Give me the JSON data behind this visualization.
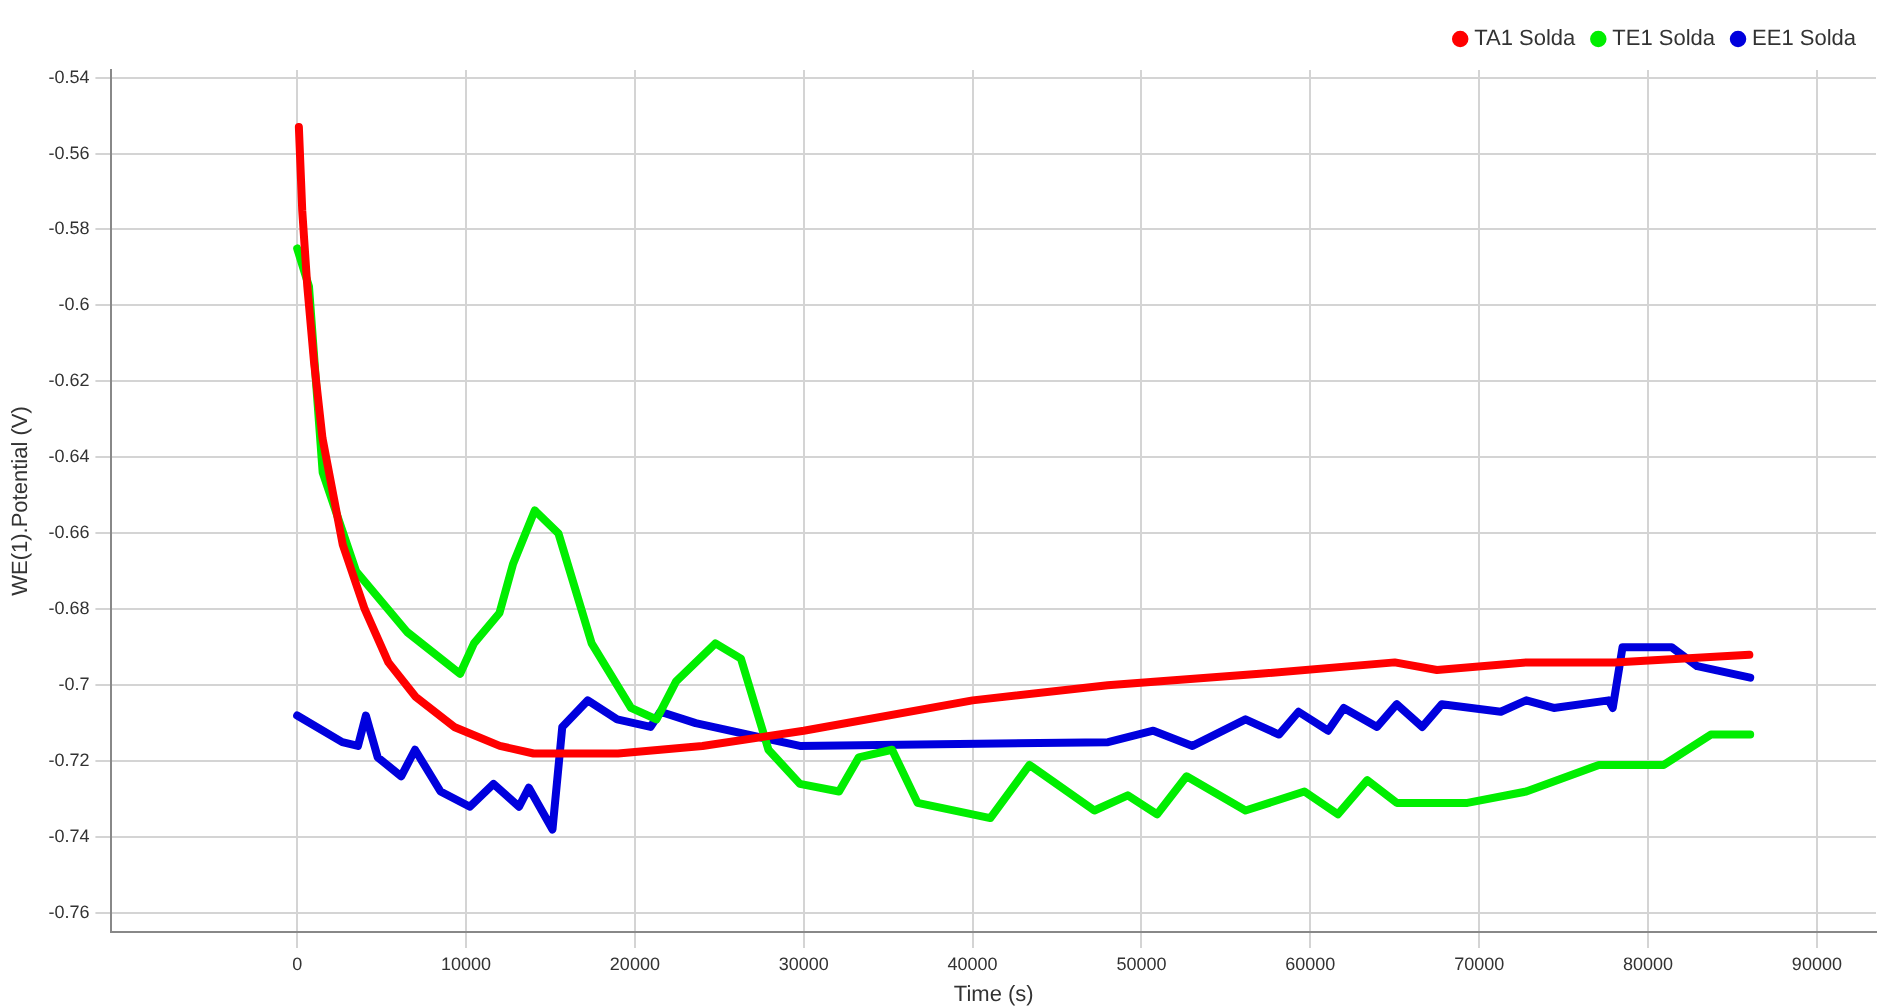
{
  "chart_data": {
    "type": "line",
    "xlabel": "Time (s)",
    "ylabel": "WE(1).Potential (V)",
    "xlim": [
      -11000,
      93500
    ],
    "ylim": [
      -0.765,
      -0.538
    ],
    "xticks": [
      0,
      10000,
      20000,
      30000,
      40000,
      50000,
      60000,
      70000,
      80000,
      90000
    ],
    "yticks": [
      -0.76,
      -0.74,
      -0.72,
      -0.7,
      -0.68,
      -0.66,
      -0.64,
      -0.62,
      -0.6,
      -0.58,
      -0.56,
      -0.54
    ],
    "grid": true,
    "legend": "top right",
    "marker": "none",
    "line_style": "solid",
    "series": [
      {
        "name": "TA1 Solda",
        "color": "#ff0000",
        "x": [
          100,
          300,
          600,
          1000,
          1500,
          2700,
          4000,
          5400,
          7000,
          9300,
          12000,
          14000,
          19000,
          24000,
          30000,
          40000,
          48000,
          57000,
          65000,
          67500,
          72800,
          78000,
          86000
        ],
        "values": [
          -0.553,
          -0.575,
          -0.595,
          -0.615,
          -0.635,
          -0.663,
          -0.68,
          -0.694,
          -0.703,
          -0.711,
          -0.716,
          -0.718,
          -0.718,
          -0.716,
          -0.712,
          -0.704,
          -0.7,
          -0.697,
          -0.694,
          -0.696,
          -0.694,
          -0.694,
          -0.692
        ]
      },
      {
        "name": "TE1 Solda",
        "color": "#00ee00",
        "x": [
          0,
          700,
          1510,
          3490,
          6510,
          9650,
          10470,
          11980,
          12790,
          14070,
          15470,
          17440,
          19770,
          21280,
          22440,
          24770,
          26280,
          27910,
          29770,
          32090,
          33260,
          35230,
          36740,
          41050,
          43370,
          47210,
          49190,
          50930,
          52670,
          56160,
          59650,
          61630,
          63370,
          65120,
          69300,
          72790,
          77090,
          80930,
          83720,
          86050
        ],
        "values": [
          -0.585,
          -0.595,
          -0.644,
          -0.67,
          -0.686,
          -0.697,
          -0.689,
          -0.681,
          -0.668,
          -0.654,
          -0.66,
          -0.689,
          -0.706,
          -0.709,
          -0.699,
          -0.689,
          -0.693,
          -0.717,
          -0.726,
          -0.728,
          -0.719,
          -0.717,
          -0.731,
          -0.735,
          -0.721,
          -0.733,
          -0.729,
          -0.734,
          -0.724,
          -0.733,
          -0.728,
          -0.734,
          -0.725,
          -0.731,
          -0.731,
          -0.728,
          -0.721,
          -0.721,
          -0.713,
          -0.713
        ]
      },
      {
        "name": "EE1 Solda",
        "color": "#0000dd",
        "x": [
          0,
          2670,
          3600,
          4070,
          4770,
          6160,
          6980,
          8490,
          10230,
          11630,
          13140,
          13720,
          15120,
          15700,
          17210,
          18950,
          20930,
          21510,
          23600,
          29770,
          48020,
          50700,
          53020,
          56160,
          58140,
          59300,
          61050,
          61980,
          63950,
          65120,
          66630,
          67790,
          71280,
          72790,
          74420,
          77670,
          77910,
          78490,
          81400,
          82910,
          86050
        ],
        "values": [
          -0.708,
          -0.715,
          -0.716,
          -0.708,
          -0.719,
          -0.724,
          -0.717,
          -0.728,
          -0.732,
          -0.726,
          -0.732,
          -0.727,
          -0.738,
          -0.711,
          -0.704,
          -0.709,
          -0.711,
          -0.707,
          -0.71,
          -0.716,
          -0.715,
          -0.712,
          -0.716,
          -0.709,
          -0.713,
          -0.707,
          -0.712,
          -0.706,
          -0.711,
          -0.705,
          -0.711,
          -0.705,
          -0.707,
          -0.704,
          -0.706,
          -0.704,
          -0.706,
          -0.69,
          -0.69,
          -0.695,
          -0.698
        ]
      }
    ]
  }
}
